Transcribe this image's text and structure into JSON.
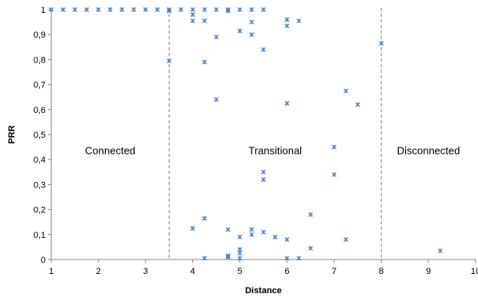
{
  "chart_data": {
    "type": "scatter",
    "xlabel": "Distance",
    "ylabel": "PRR",
    "xlim": [
      1,
      10
    ],
    "ylim": [
      0,
      1
    ],
    "x_ticks": [
      "1",
      "2",
      "3",
      "4",
      "5",
      "6",
      "7",
      "8",
      "9",
      "10"
    ],
    "y_ticks": [
      "0",
      "0,1",
      "0,2",
      "0,3",
      "0,4",
      "0,5",
      "0,6",
      "0,7",
      "0,8",
      "0,9",
      "1"
    ],
    "grid": false,
    "legend": "none",
    "marker": "x",
    "marker_color": "#4a7ebb",
    "boundaries": [
      3.5,
      8
    ],
    "regions": [
      {
        "label": "Connected",
        "x": 2.25,
        "y": 0.435
      },
      {
        "label": "Transitional",
        "x": 5.75,
        "y": 0.435
      },
      {
        "label": "Disconnected",
        "x": 9.0,
        "y": 0.435
      }
    ],
    "series": [
      {
        "points": [
          [
            1.0,
            1.0
          ],
          [
            1.25,
            1.0
          ],
          [
            1.5,
            1.0
          ],
          [
            1.75,
            1.0
          ],
          [
            2.0,
            1.0
          ],
          [
            2.25,
            1.0
          ],
          [
            2.5,
            1.0
          ],
          [
            2.75,
            1.0
          ],
          [
            3.0,
            1.0
          ],
          [
            3.25,
            1.0
          ],
          [
            3.5,
            1.0
          ],
          [
            3.5,
            0.995
          ],
          [
            3.5,
            0.795
          ],
          [
            3.75,
            1.0
          ],
          [
            4.0,
            1.0
          ],
          [
            4.0,
            0.98
          ],
          [
            4.0,
            0.955
          ],
          [
            4.0,
            0.125
          ],
          [
            4.25,
            1.0
          ],
          [
            4.25,
            0.955
          ],
          [
            4.25,
            0.79
          ],
          [
            4.25,
            0.165
          ],
          [
            4.25,
            0.005
          ],
          [
            4.5,
            1.0
          ],
          [
            4.5,
            0.89
          ],
          [
            4.5,
            0.64
          ],
          [
            4.75,
            1.0
          ],
          [
            4.75,
            0.995
          ],
          [
            4.75,
            0.12
          ],
          [
            4.75,
            0.015
          ],
          [
            4.75,
            0.01
          ],
          [
            5.0,
            1.0
          ],
          [
            5.0,
            0.915
          ],
          [
            5.0,
            0.09
          ],
          [
            5.0,
            0.04
          ],
          [
            5.0,
            0.025
          ],
          [
            5.0,
            0.005
          ],
          [
            5.25,
            1.0
          ],
          [
            5.25,
            0.95
          ],
          [
            5.25,
            0.9
          ],
          [
            5.25,
            0.12
          ],
          [
            5.25,
            0.1
          ],
          [
            5.5,
            1.0
          ],
          [
            5.5,
            0.84
          ],
          [
            5.5,
            0.35
          ],
          [
            5.5,
            0.32
          ],
          [
            5.5,
            0.11
          ],
          [
            5.75,
            0.09
          ],
          [
            6.0,
            0.96
          ],
          [
            6.0,
            0.935
          ],
          [
            6.0,
            0.625
          ],
          [
            6.0,
            0.08
          ],
          [
            6.0,
            0.005
          ],
          [
            6.25,
            0.955
          ],
          [
            6.25,
            0.005
          ],
          [
            6.5,
            0.18
          ],
          [
            6.5,
            0.045
          ],
          [
            7.0,
            0.45
          ],
          [
            7.0,
            0.34
          ],
          [
            7.25,
            0.675
          ],
          [
            7.25,
            0.08
          ],
          [
            7.5,
            0.62
          ],
          [
            8.0,
            0.865
          ],
          [
            9.25,
            0.035
          ]
        ]
      }
    ]
  }
}
